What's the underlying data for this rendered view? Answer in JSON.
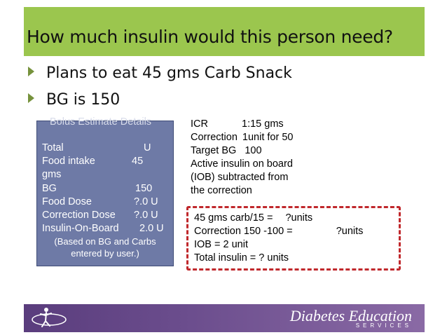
{
  "slide": {
    "title": "How much insulin would this person need?",
    "bullets": [
      "Plans to eat 45 gms Carb Snack",
      "BG is 150"
    ]
  },
  "bolus_box": {
    "header": "Bolus Estimate Details",
    "total_label": "Total",
    "total_value": "U",
    "food_intake_label": "Food intake",
    "food_intake_value": "45",
    "food_intake_unit": "gms",
    "bg_label": "BG",
    "bg_value": "150",
    "food_dose_label": "Food Dose",
    "food_dose_value": "?.0 U",
    "correction_dose_label": "Correction Dose",
    "correction_dose_value": "?.0 U",
    "iob_label": "Insulin-On-Board",
    "iob_value": "2.0 U",
    "note_line1": "(Based on BG and Carbs",
    "note_line2": "entered by user.)"
  },
  "info": {
    "icr_label": "ICR",
    "icr_value": "1:15 gms",
    "correction_label": "Correction",
    "correction_value": "1unit for 50",
    "target_label": "Target BG",
    "target_value": "100",
    "active_line1": "Active insulin on board",
    "active_line2": "(IOB) subtracted from",
    "active_line3": "the correction"
  },
  "calculation": {
    "carb_line": "45 gms carb/15 =",
    "carb_result": "?units",
    "correction_line": "Correction 150 -100 =",
    "correction_result": "?units",
    "iob_line": "IOB = 2 unit",
    "total_line": "Total insulin = ?  units"
  },
  "footer": {
    "brand": "Diabetes Education",
    "brand_sub": "SERVICES"
  },
  "colors": {
    "title_bar": "#9bc64e",
    "box_fill": "#6e7aa6",
    "dash_border": "#c0282c",
    "footer": "#5a3d7d"
  }
}
